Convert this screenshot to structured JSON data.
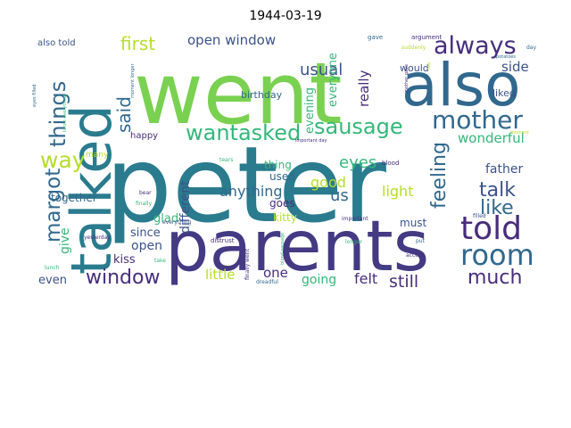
{
  "title": "1944-03-19",
  "palette": {
    "teal": "#2a7b8e",
    "green": "#7ad151",
    "purple": "#443983",
    "blue": "#31688e",
    "lightgreen": "#b5de2b",
    "seagreen": "#35b779",
    "darkpurple": "#472d7b",
    "indigo": "#3b528b"
  },
  "words": [
    {
      "text": "peter",
      "color": "teal"
    },
    {
      "text": "went",
      "color": "green"
    },
    {
      "text": "parents",
      "color": "purple"
    },
    {
      "text": "talked",
      "color": "teal"
    },
    {
      "text": "also",
      "color": "blue"
    },
    {
      "text": "mother",
      "color": "blue"
    },
    {
      "text": "always",
      "color": "darkpurple"
    },
    {
      "text": "told",
      "color": "darkpurple"
    },
    {
      "text": "room",
      "color": "blue"
    },
    {
      "text": "sausage",
      "color": "seagreen"
    },
    {
      "text": "wantasked",
      "color": "seagreen"
    },
    {
      "text": "things",
      "color": "blue"
    },
    {
      "text": "margot",
      "color": "blue"
    },
    {
      "text": "way",
      "color": "lightgreen"
    },
    {
      "text": "window",
      "color": "darkpurple"
    },
    {
      "text": "much",
      "color": "darkpurple"
    },
    {
      "text": "like",
      "color": "blue"
    },
    {
      "text": "talk",
      "color": "indigo"
    },
    {
      "text": "feeling",
      "color": "blue"
    },
    {
      "text": "first",
      "color": "lightgreen"
    },
    {
      "text": "said",
      "color": "blue"
    },
    {
      "text": "usual",
      "color": "indigo"
    },
    {
      "text": "open window",
      "color": "indigo"
    },
    {
      "text": "eyes",
      "color": "seagreen"
    },
    {
      "text": "still",
      "color": "darkpurple"
    },
    {
      "text": "good",
      "color": "lightgreen"
    },
    {
      "text": "us",
      "color": "blue"
    },
    {
      "text": "anything",
      "color": "blue"
    },
    {
      "text": "wonderful",
      "color": "seagreen"
    },
    {
      "text": "evening",
      "color": "seagreen"
    },
    {
      "text": "everyone",
      "color": "seagreen"
    },
    {
      "text": "really",
      "color": "darkpurple"
    },
    {
      "text": "side",
      "color": "indigo"
    },
    {
      "text": "father",
      "color": "indigo"
    },
    {
      "text": "light",
      "color": "lightgreen"
    },
    {
      "text": "felt",
      "color": "darkpurple"
    },
    {
      "text": "going",
      "color": "seagreen"
    },
    {
      "text": "little",
      "color": "lightgreen"
    },
    {
      "text": "one",
      "color": "darkpurple"
    },
    {
      "text": "kiss",
      "color": "darkpurple"
    },
    {
      "text": "open",
      "color": "indigo"
    },
    {
      "text": "since",
      "color": "indigo"
    },
    {
      "text": "glad",
      "color": "seagreen"
    },
    {
      "text": "different",
      "color": "indigo"
    },
    {
      "text": "give",
      "color": "seagreen"
    },
    {
      "text": "together",
      "color": "blue"
    },
    {
      "text": "even",
      "color": "indigo"
    },
    {
      "text": "thing",
      "color": "seagreen"
    },
    {
      "text": "used",
      "color": "blue"
    },
    {
      "text": "goes",
      "color": "darkpurple"
    },
    {
      "text": "kitty",
      "color": "lightgreen"
    },
    {
      "text": "must",
      "color": "indigo"
    },
    {
      "text": "birthday",
      "color": "blue"
    },
    {
      "text": "happy",
      "color": "darkpurple"
    },
    {
      "text": "many",
      "color": "lightgreen"
    },
    {
      "text": "would",
      "color": "indigo"
    },
    {
      "text": "liked",
      "color": "indigo"
    },
    {
      "text": "also told",
      "color": "indigo"
    },
    {
      "text": "eyes filled",
      "color": "blue"
    },
    {
      "text": "lunch everything",
      "color": "seagreen"
    },
    {
      "text": "moment longer",
      "color": "blue"
    },
    {
      "text": "mother gave",
      "color": "darkpurple"
    },
    {
      "text": "important day",
      "color": "darkpurple"
    },
    {
      "text": "gave",
      "color": "blue"
    },
    {
      "text": "argument",
      "color": "darkpurple"
    },
    {
      "text": "suddenly",
      "color": "lightgreen"
    },
    {
      "text": "day",
      "color": "blue"
    },
    {
      "text": "potatoes",
      "color": "blue"
    },
    {
      "text": "yesterday",
      "color": "darkpurple"
    },
    {
      "text": "bear",
      "color": "darkpurple"
    },
    {
      "text": "tears",
      "color": "seagreen"
    },
    {
      "text": "finally",
      "color": "seagreen"
    },
    {
      "text": "everything",
      "color": "indigo"
    },
    {
      "text": "distrust",
      "color": "darkpurple"
    },
    {
      "text": "blood",
      "color": "darkpurple"
    },
    {
      "text": "blood sausage",
      "color": "seagreen"
    },
    {
      "text": "finally went",
      "color": "darkpurple"
    },
    {
      "text": "important",
      "color": "darkpurple"
    },
    {
      "text": "longer",
      "color": "seagreen"
    },
    {
      "text": "put",
      "color": "blue"
    },
    {
      "text": "accept",
      "color": "darkpurple"
    },
    {
      "text": "five",
      "color": "indigo"
    },
    {
      "text": "filled",
      "color": "indigo"
    },
    {
      "text": "lunch",
      "color": "seagreen"
    },
    {
      "text": "take",
      "color": "seagreen"
    },
    {
      "text": "dreadful",
      "color": "blue"
    },
    {
      "text": "moment",
      "color": "lightgreen"
    },
    {
      "text": "tea",
      "color": "lightgreen"
    }
  ]
}
